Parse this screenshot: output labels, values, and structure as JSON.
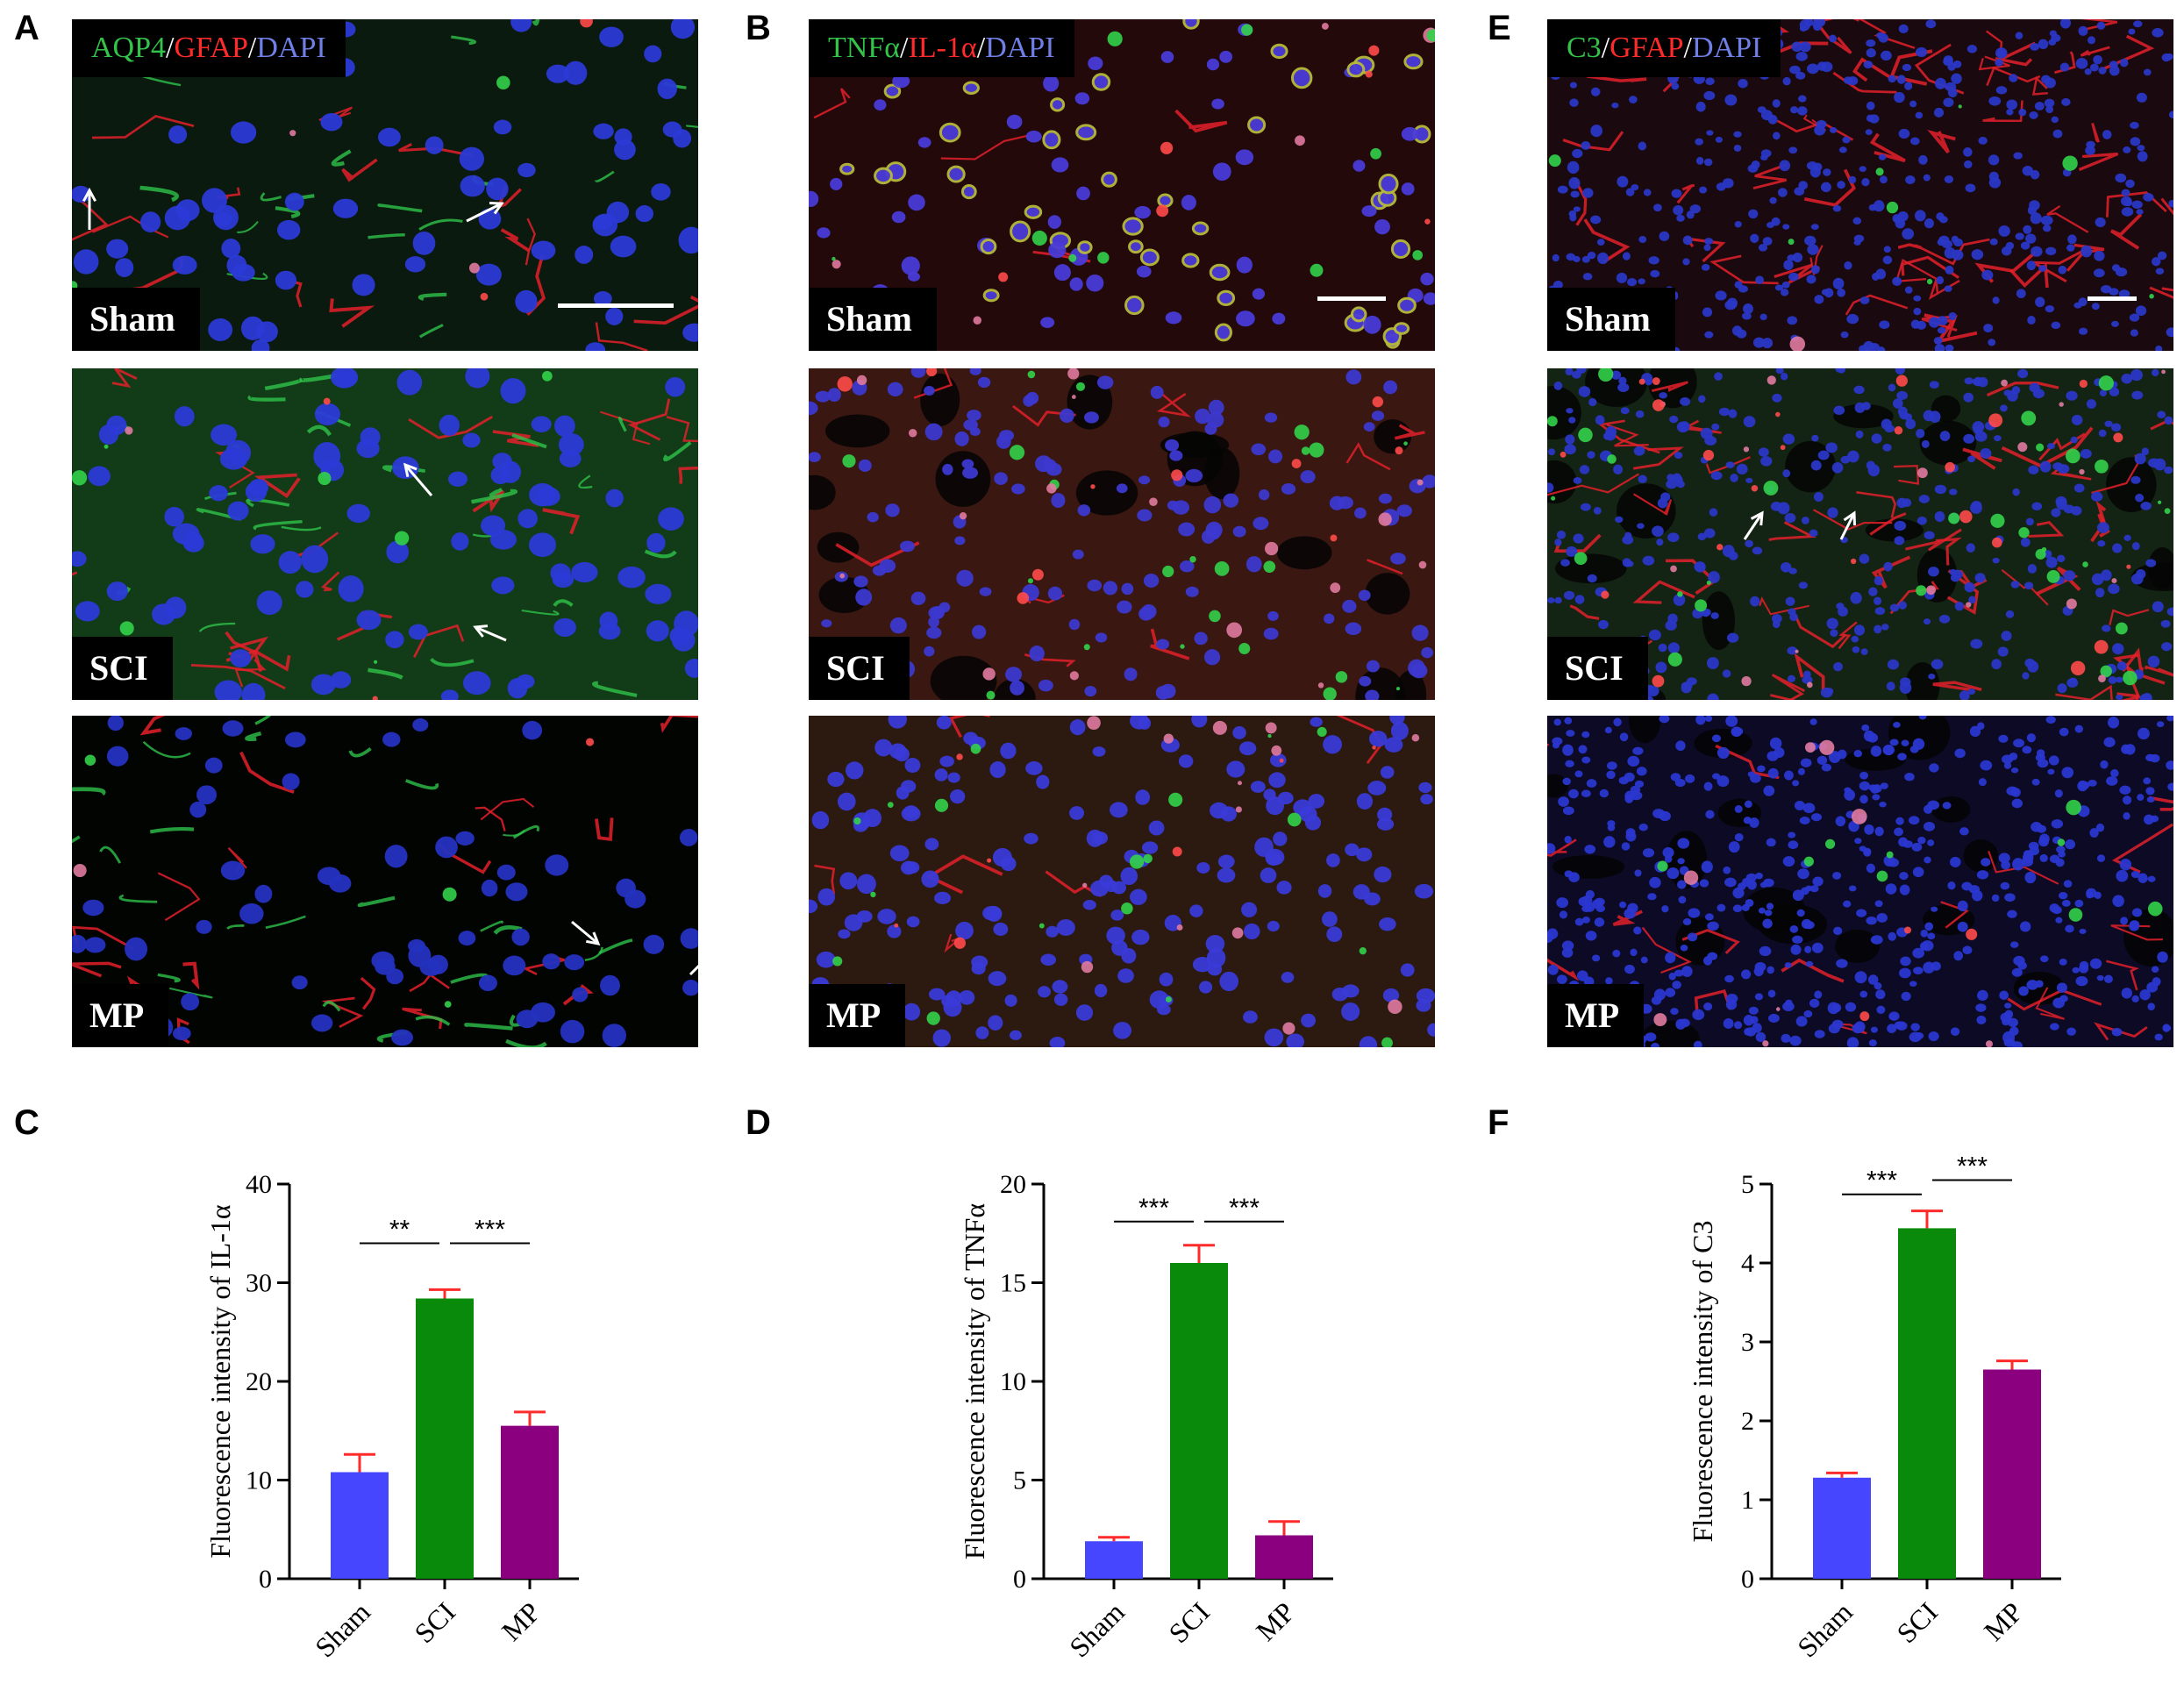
{
  "panel_labels": [
    "A",
    "B",
    "E",
    "C",
    "D",
    "F"
  ],
  "micrographs": [
    {
      "id": "A",
      "channels": [
        {
          "text": "AQP4",
          "color": "green"
        },
        {
          "text": "/",
          "color": "white"
        },
        {
          "text": "GFAP",
          "color": "red"
        },
        {
          "text": "/",
          "color": "white"
        },
        {
          "text": "DAPI",
          "color": "blue"
        }
      ],
      "rows": [
        {
          "group": "Sham",
          "style": "a_sham"
        },
        {
          "group": "SCI",
          "style": "a_sci"
        },
        {
          "group": "MP",
          "style": "a_mp"
        }
      ]
    },
    {
      "id": "B",
      "channels": [
        {
          "text": "TNFα",
          "color": "green"
        },
        {
          "text": "/",
          "color": "white"
        },
        {
          "text": "IL-1α",
          "color": "red"
        },
        {
          "text": "/",
          "color": "white"
        },
        {
          "text": "DAPI",
          "color": "blue"
        }
      ],
      "rows": [
        {
          "group": "Sham",
          "style": "b_sham"
        },
        {
          "group": "SCI",
          "style": "b_sci"
        },
        {
          "group": "MP",
          "style": "b_mp"
        }
      ]
    },
    {
      "id": "E",
      "channels": [
        {
          "text": "C3",
          "color": "green"
        },
        {
          "text": "/",
          "color": "white"
        },
        {
          "text": "GFAP",
          "color": "red"
        },
        {
          "text": "/",
          "color": "white"
        },
        {
          "text": "DAPI",
          "color": "blue"
        }
      ],
      "rows": [
        {
          "group": "Sham",
          "style": "e_sham"
        },
        {
          "group": "SCI",
          "style": "e_sci"
        },
        {
          "group": "MP",
          "style": "e_mp"
        }
      ]
    }
  ],
  "chart_data": [
    {
      "id": "C",
      "type": "bar",
      "categories": [
        "Sham",
        "SCI",
        "MP"
      ],
      "values": [
        10.8,
        28.4,
        15.5
      ],
      "errors": [
        1.8,
        0.9,
        1.4
      ],
      "bar_colors": [
        "#4646ff",
        "#0a8a0a",
        "#8a007e"
      ],
      "error_color": "#ff2a2a",
      "ylabel": "Fluorescence intensity of IL-1α",
      "ylim": [
        0,
        40
      ],
      "yticks": [
        0,
        10,
        20,
        30,
        40
      ],
      "significance": [
        {
          "from": 0,
          "to": 1,
          "label": "**",
          "y": 34
        },
        {
          "from": 1,
          "to": 2,
          "label": "***",
          "y": 34
        }
      ]
    },
    {
      "id": "D",
      "type": "bar",
      "categories": [
        "Sham",
        "SCI",
        "MP"
      ],
      "values": [
        1.9,
        16.0,
        2.2
      ],
      "errors": [
        0.2,
        0.9,
        0.7
      ],
      "bar_colors": [
        "#4646ff",
        "#0a8a0a",
        "#8a007e"
      ],
      "error_color": "#ff2a2a",
      "ylabel": "Fluorescence intensity of TNFα",
      "ylim": [
        0,
        20
      ],
      "yticks": [
        0,
        5,
        10,
        15,
        20
      ],
      "significance": [
        {
          "from": 0,
          "to": 1,
          "label": "***",
          "y": 18.1
        },
        {
          "from": 1,
          "to": 2,
          "label": "***",
          "y": 18.1
        }
      ]
    },
    {
      "id": "F",
      "type": "bar",
      "categories": [
        "Sham",
        "SCI",
        "MP"
      ],
      "values": [
        1.28,
        4.44,
        2.65
      ],
      "errors": [
        0.06,
        0.22,
        0.11
      ],
      "bar_colors": [
        "#4646ff",
        "#0a8a0a",
        "#8a007e"
      ],
      "error_color": "#ff2a2a",
      "ylabel": "Fluorescence intensity of C3",
      "ylim": [
        0,
        5
      ],
      "yticks": [
        0,
        1,
        2,
        3,
        4,
        5
      ],
      "significance": [
        {
          "from": 0,
          "to": 1,
          "label": "***",
          "y": 4.87
        },
        {
          "from": 1,
          "to": 2,
          "label": "***",
          "y": 5.05
        }
      ]
    }
  ]
}
